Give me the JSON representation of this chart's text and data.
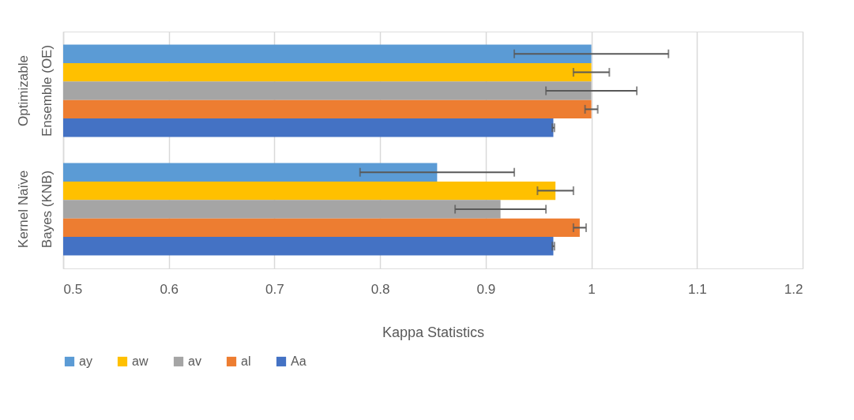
{
  "chart_data": {
    "type": "bar",
    "orientation": "horizontal",
    "xlabel": "Kappa Statistics",
    "categories": [
      "Optimizable Ensemble (OE)",
      "Kernel Naïve Bayes (KNB)"
    ],
    "series": [
      {
        "name": "ay",
        "color": "#5b9bd5",
        "values": [
          1.0,
          0.854
        ],
        "errors": [
          0.073,
          0.073
        ]
      },
      {
        "name": "aw",
        "color": "#ffc000",
        "values": [
          1.0,
          0.966
        ],
        "errors": [
          0.017,
          0.017
        ]
      },
      {
        "name": "av",
        "color": "#a5a5a5",
        "values": [
          1.0,
          0.914
        ],
        "errors": [
          0.043,
          0.043
        ]
      },
      {
        "name": "al",
        "color": "#ed7d31",
        "values": [
          1.0,
          0.989
        ],
        "errors": [
          0.006,
          0.006
        ]
      },
      {
        "name": "Aa",
        "color": "#4472c4",
        "values": [
          0.964,
          0.964
        ],
        "errors": [
          0.001,
          0.001
        ]
      }
    ],
    "xlim": [
      0.5,
      1.2
    ],
    "xticks": [
      0.5,
      0.6,
      0.7,
      0.8,
      0.9,
      1,
      1.1,
      1.2
    ],
    "grid": "x",
    "legend": "bottom"
  }
}
